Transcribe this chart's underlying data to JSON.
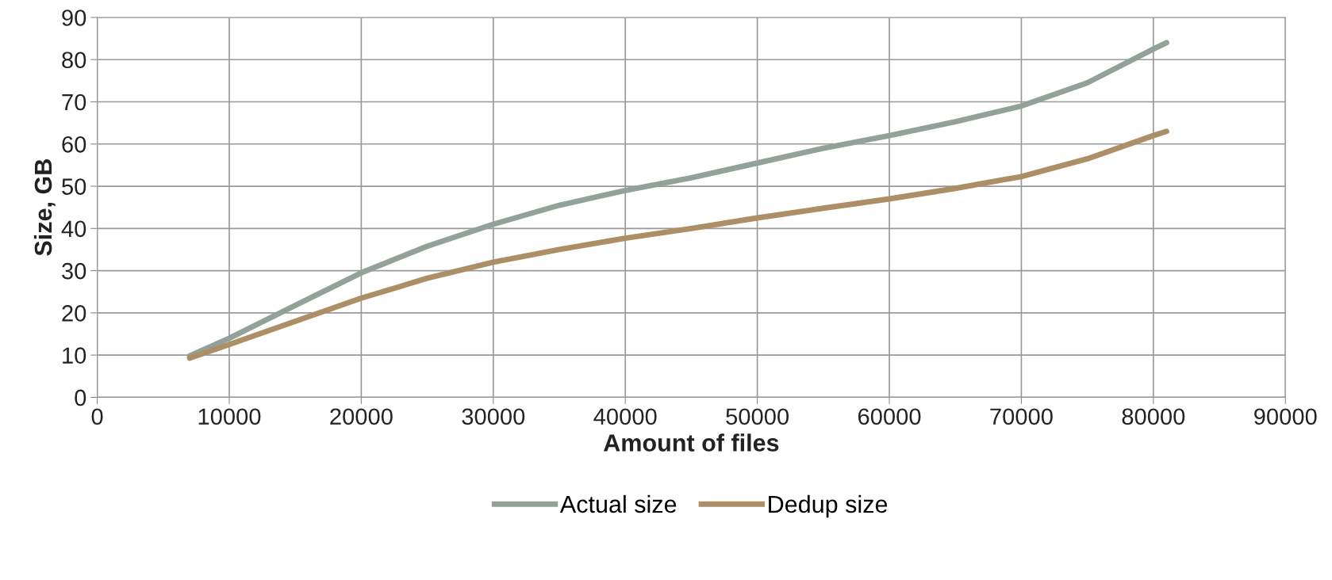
{
  "chart_data": {
    "type": "line",
    "xlabel": "Amount of files",
    "ylabel": "Size, GB",
    "x": [
      7000,
      10000,
      15000,
      20000,
      25000,
      30000,
      35000,
      40000,
      45000,
      50000,
      55000,
      60000,
      65000,
      70000,
      75000,
      80000,
      81000
    ],
    "series": [
      {
        "name": "Actual size",
        "color": "#93a299",
        "values": [
          9.8,
          14,
          21.8,
          29.5,
          35.8,
          41,
          45.5,
          49,
          52,
          55.5,
          59,
          62,
          65.3,
          69,
          74.5,
          82.5,
          84
        ]
      },
      {
        "name": "Dedup size",
        "color": "#ad8f67",
        "values": [
          9.3,
          12.5,
          18,
          23.5,
          28.2,
          32,
          35,
          37.7,
          40,
          42.5,
          44.8,
          47,
          49.5,
          52.3,
          56.5,
          62,
          63
        ]
      }
    ],
    "xlim": [
      0,
      90000
    ],
    "xticks": [
      0,
      10000,
      20000,
      30000,
      40000,
      50000,
      60000,
      70000,
      80000,
      90000
    ],
    "ylim": [
      0,
      90
    ],
    "yticks": [
      0,
      10,
      20,
      30,
      40,
      50,
      60,
      70,
      80,
      90
    ],
    "grid": true,
    "legend": "bottom"
  }
}
